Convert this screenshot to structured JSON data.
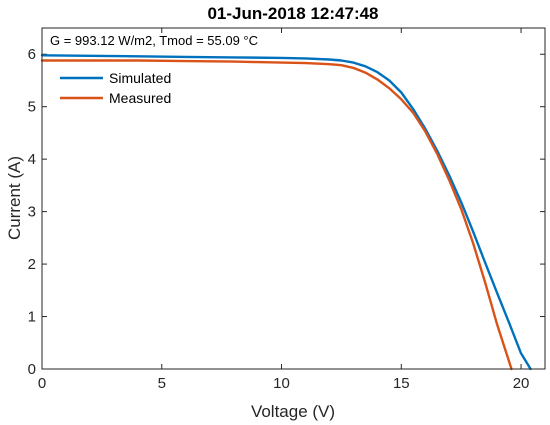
{
  "chart_data": {
    "type": "line",
    "title": "01-Jun-2018 12:47:48",
    "annotation": "G = 993.12 W/m2, Tmod = 55.09 °C",
    "xlabel": "Voltage (V)",
    "ylabel": "Current (A)",
    "xlim": [
      0,
      21
    ],
    "ylim": [
      0,
      6.5
    ],
    "xticks": [
      "0",
      "5",
      "10",
      "15",
      "20"
    ],
    "yticks": [
      "0",
      "1",
      "2",
      "3",
      "4",
      "5",
      "6"
    ],
    "grid": false,
    "legend_position": "top-left",
    "series": [
      {
        "name": "Simulated",
        "color": "#0072BD",
        "x": [
          0,
          2,
          4,
          6,
          8,
          10,
          11,
          12,
          12.5,
          13,
          13.5,
          14,
          14.5,
          15,
          15.5,
          16,
          16.5,
          17,
          17.5,
          18,
          18.5,
          19,
          19.5,
          20,
          20.4
        ],
        "y": [
          5.98,
          5.97,
          5.96,
          5.95,
          5.94,
          5.93,
          5.92,
          5.9,
          5.88,
          5.84,
          5.77,
          5.66,
          5.5,
          5.27,
          4.95,
          4.58,
          4.16,
          3.69,
          3.18,
          2.62,
          2.03,
          1.45,
          0.88,
          0.3,
          0
        ]
      },
      {
        "name": "Measured",
        "color": "#D95319",
        "x": [
          0,
          2,
          4,
          6,
          8,
          9,
          10,
          11,
          12,
          12.5,
          13,
          13.5,
          14,
          14.5,
          15,
          15.5,
          16,
          16.5,
          17,
          17.5,
          18,
          18.5,
          19,
          19.6
        ],
        "y": [
          5.88,
          5.88,
          5.88,
          5.87,
          5.86,
          5.85,
          5.84,
          5.83,
          5.81,
          5.79,
          5.74,
          5.65,
          5.52,
          5.35,
          5.14,
          4.88,
          4.53,
          4.1,
          3.6,
          3.05,
          2.4,
          1.65,
          0.85,
          0
        ]
      }
    ]
  }
}
